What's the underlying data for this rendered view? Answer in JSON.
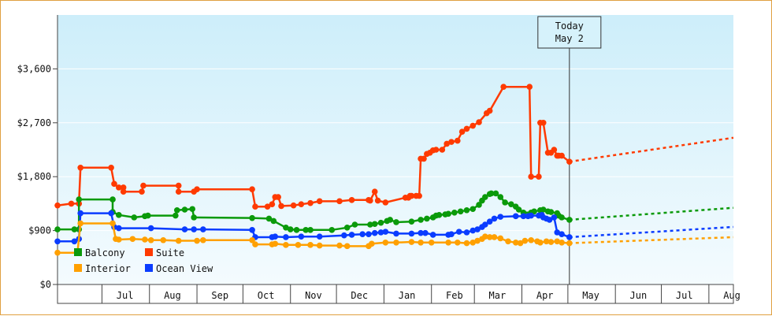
{
  "chart_data": {
    "type": "line",
    "title": "",
    "xlabel": "",
    "ylabel": "",
    "ylim": [
      0,
      4500
    ],
    "y_ticks": [
      {
        "value": 0,
        "label": "$0"
      },
      {
        "value": 900,
        "label": "$900"
      },
      {
        "value": 1800,
        "label": "$1,800"
      },
      {
        "value": 2700,
        "label": "$2,700"
      },
      {
        "value": 3600,
        "label": "$3,600"
      }
    ],
    "x_unit": "days since Jun 1",
    "xlim": [
      1,
      442
    ],
    "month_labels": [
      {
        "day": 45,
        "label": "Jul"
      },
      {
        "day": 76,
        "label": "Aug"
      },
      {
        "day": 107,
        "label": "Sep"
      },
      {
        "day": 137,
        "label": "Oct"
      },
      {
        "day": 168,
        "label": "Nov"
      },
      {
        "day": 198,
        "label": "Dec"
      },
      {
        "day": 229,
        "label": "Jan"
      },
      {
        "day": 260,
        "label": "Feb"
      },
      {
        "day": 288,
        "label": "Mar"
      },
      {
        "day": 319,
        "label": "Apr"
      },
      {
        "day": 349,
        "label": "May"
      },
      {
        "day": 380,
        "label": "Jun"
      },
      {
        "day": 410,
        "label": "Jul"
      },
      {
        "day": 441,
        "label": "Aug"
      }
    ],
    "month_boundaries": [
      30,
      61,
      92,
      122,
      153,
      183,
      214,
      245,
      273,
      304,
      334,
      365,
      395,
      426
    ],
    "today": {
      "day": 335,
      "line1": "Today",
      "line2": "May 2"
    },
    "legend": [
      {
        "series": "balcony",
        "label": "Balcony"
      },
      {
        "series": "suite",
        "label": "Suite"
      },
      {
        "series": "interior",
        "label": "Interior"
      },
      {
        "series": "oceanview",
        "label": "Ocean View"
      }
    ],
    "series": [
      {
        "id": "suite",
        "name": "Suite",
        "color": "#ff3a00",
        "points": [
          [
            1,
            1320
          ],
          [
            10,
            1350
          ],
          [
            15,
            1350
          ],
          [
            16,
            1950
          ],
          [
            36,
            1950
          ],
          [
            38,
            1680
          ],
          [
            41,
            1620
          ],
          [
            44,
            1620
          ],
          [
            44,
            1550
          ],
          [
            56,
            1550
          ],
          [
            57,
            1650
          ],
          [
            80,
            1650
          ],
          [
            80,
            1550
          ],
          [
            90,
            1550
          ],
          [
            92,
            1590
          ],
          [
            128,
            1590
          ],
          [
            130,
            1300
          ],
          [
            138,
            1300
          ],
          [
            141,
            1340
          ],
          [
            143,
            1460
          ],
          [
            145,
            1460
          ],
          [
            147,
            1310
          ],
          [
            155,
            1320
          ],
          [
            160,
            1340
          ],
          [
            166,
            1360
          ],
          [
            172,
            1390
          ],
          [
            185,
            1390
          ],
          [
            193,
            1410
          ],
          [
            204,
            1410
          ],
          [
            205,
            1400
          ],
          [
            208,
            1550
          ],
          [
            210,
            1400
          ],
          [
            215,
            1370
          ],
          [
            228,
            1450
          ],
          [
            230,
            1450
          ],
          [
            231,
            1480
          ],
          [
            232,
            1480
          ],
          [
            235,
            1480
          ],
          [
            237,
            1480
          ],
          [
            238,
            2100
          ],
          [
            240,
            2100
          ],
          [
            242,
            2180
          ],
          [
            244,
            2200
          ],
          [
            246,
            2240
          ],
          [
            248,
            2250
          ],
          [
            252,
            2250
          ],
          [
            255,
            2350
          ],
          [
            258,
            2380
          ],
          [
            262,
            2400
          ],
          [
            265,
            2550
          ],
          [
            268,
            2600
          ],
          [
            272,
            2650
          ],
          [
            276,
            2710
          ],
          [
            281,
            2860
          ],
          [
            283,
            2900
          ],
          [
            292,
            3300
          ],
          [
            309,
            3300
          ],
          [
            310,
            1800
          ],
          [
            315,
            1800
          ],
          [
            316,
            2700
          ],
          [
            318,
            2700
          ],
          [
            321,
            2200
          ],
          [
            323,
            2200
          ],
          [
            325,
            2250
          ],
          [
            327,
            2150
          ],
          [
            328,
            2150
          ],
          [
            330,
            2150
          ],
          [
            335,
            2050
          ]
        ],
        "projection": [
          [
            335,
            2050
          ],
          [
            442,
            2450
          ]
        ]
      },
      {
        "id": "balcony",
        "name": "Balcony",
        "color": "#0a9a0a",
        "points": [
          [
            1,
            920
          ],
          [
            12,
            920
          ],
          [
            15,
            920
          ],
          [
            15,
            1420
          ],
          [
            37,
            1420
          ],
          [
            37,
            1210
          ],
          [
            41,
            1160
          ],
          [
            51,
            1120
          ],
          [
            58,
            1140
          ],
          [
            60,
            1150
          ],
          [
            78,
            1150
          ],
          [
            79,
            1240
          ],
          [
            84,
            1250
          ],
          [
            89,
            1260
          ],
          [
            90,
            1120
          ],
          [
            128,
            1110
          ],
          [
            139,
            1100
          ],
          [
            142,
            1060
          ],
          [
            150,
            950
          ],
          [
            153,
            920
          ],
          [
            157,
            910
          ],
          [
            163,
            910
          ],
          [
            166,
            910
          ],
          [
            180,
            910
          ],
          [
            190,
            950
          ],
          [
            195,
            1000
          ],
          [
            205,
            1000
          ],
          [
            208,
            1010
          ],
          [
            212,
            1030
          ],
          [
            216,
            1060
          ],
          [
            218,
            1080
          ],
          [
            222,
            1040
          ],
          [
            232,
            1050
          ],
          [
            238,
            1080
          ],
          [
            242,
            1100
          ],
          [
            246,
            1120
          ],
          [
            248,
            1150
          ],
          [
            250,
            1160
          ],
          [
            254,
            1170
          ],
          [
            256,
            1180
          ],
          [
            260,
            1200
          ],
          [
            264,
            1220
          ],
          [
            268,
            1240
          ],
          [
            272,
            1260
          ],
          [
            276,
            1330
          ],
          [
            278,
            1400
          ],
          [
            280,
            1460
          ],
          [
            283,
            1510
          ],
          [
            284,
            1520
          ],
          [
            287,
            1520
          ],
          [
            290,
            1460
          ],
          [
            293,
            1370
          ],
          [
            297,
            1340
          ],
          [
            300,
            1300
          ],
          [
            302,
            1250
          ],
          [
            305,
            1200
          ],
          [
            310,
            1200
          ],
          [
            312,
            1220
          ],
          [
            316,
            1240
          ],
          [
            318,
            1250
          ],
          [
            321,
            1220
          ],
          [
            323,
            1210
          ],
          [
            327,
            1190
          ],
          [
            328,
            1150
          ],
          [
            330,
            1120
          ],
          [
            335,
            1080
          ]
        ],
        "projection": [
          [
            335,
            1080
          ],
          [
            442,
            1280
          ]
        ]
      },
      {
        "id": "oceanview",
        "name": "Ocean View",
        "color": "#0a3cff",
        "points": [
          [
            1,
            720
          ],
          [
            12,
            720
          ],
          [
            15,
            760
          ],
          [
            16,
            1190
          ],
          [
            36,
            1190
          ],
          [
            38,
            960
          ],
          [
            41,
            940
          ],
          [
            62,
            940
          ],
          [
            84,
            920
          ],
          [
            90,
            920
          ],
          [
            96,
            920
          ],
          [
            128,
            910
          ],
          [
            130,
            790
          ],
          [
            141,
            790
          ],
          [
            143,
            800
          ],
          [
            150,
            790
          ],
          [
            160,
            800
          ],
          [
            172,
            800
          ],
          [
            188,
            820
          ],
          [
            193,
            830
          ],
          [
            200,
            840
          ],
          [
            204,
            840
          ],
          [
            208,
            860
          ],
          [
            212,
            870
          ],
          [
            215,
            880
          ],
          [
            222,
            850
          ],
          [
            232,
            850
          ],
          [
            238,
            860
          ],
          [
            241,
            860
          ],
          [
            246,
            830
          ],
          [
            256,
            830
          ],
          [
            258,
            840
          ],
          [
            263,
            880
          ],
          [
            268,
            870
          ],
          [
            272,
            900
          ],
          [
            275,
            920
          ],
          [
            278,
            960
          ],
          [
            280,
            1000
          ],
          [
            283,
            1050
          ],
          [
            286,
            1100
          ],
          [
            290,
            1130
          ],
          [
            300,
            1140
          ],
          [
            305,
            1140
          ],
          [
            308,
            1140
          ],
          [
            310,
            1150
          ],
          [
            315,
            1150
          ],
          [
            317,
            1160
          ],
          [
            318,
            1120
          ],
          [
            320,
            1100
          ],
          [
            322,
            1080
          ],
          [
            325,
            1120
          ],
          [
            327,
            870
          ],
          [
            330,
            840
          ],
          [
            335,
            790
          ]
        ],
        "projection": [
          [
            335,
            790
          ],
          [
            442,
            960
          ]
        ]
      },
      {
        "id": "interior",
        "name": "Interior",
        "color": "#ffa000",
        "points": [
          [
            1,
            530
          ],
          [
            14,
            530
          ],
          [
            16,
            1020
          ],
          [
            37,
            1020
          ],
          [
            39,
            760
          ],
          [
            41,
            750
          ],
          [
            50,
            760
          ],
          [
            58,
            750
          ],
          [
            62,
            740
          ],
          [
            70,
            740
          ],
          [
            80,
            730
          ],
          [
            92,
            730
          ],
          [
            96,
            740
          ],
          [
            128,
            740
          ],
          [
            130,
            670
          ],
          [
            141,
            670
          ],
          [
            143,
            680
          ],
          [
            150,
            660
          ],
          [
            158,
            660
          ],
          [
            166,
            660
          ],
          [
            172,
            650
          ],
          [
            185,
            650
          ],
          [
            190,
            640
          ],
          [
            204,
            640
          ],
          [
            206,
            680
          ],
          [
            215,
            700
          ],
          [
            222,
            700
          ],
          [
            232,
            710
          ],
          [
            238,
            700
          ],
          [
            245,
            700
          ],
          [
            256,
            700
          ],
          [
            262,
            700
          ],
          [
            268,
            690
          ],
          [
            272,
            700
          ],
          [
            275,
            730
          ],
          [
            278,
            760
          ],
          [
            280,
            800
          ],
          [
            283,
            790
          ],
          [
            286,
            790
          ],
          [
            290,
            770
          ],
          [
            295,
            720
          ],
          [
            300,
            700
          ],
          [
            303,
            690
          ],
          [
            306,
            730
          ],
          [
            310,
            740
          ],
          [
            314,
            720
          ],
          [
            316,
            700
          ],
          [
            320,
            720
          ],
          [
            323,
            710
          ],
          [
            327,
            720
          ],
          [
            330,
            700
          ],
          [
            335,
            690
          ]
        ],
        "projection": [
          [
            335,
            690
          ],
          [
            442,
            790
          ]
        ]
      }
    ]
  }
}
